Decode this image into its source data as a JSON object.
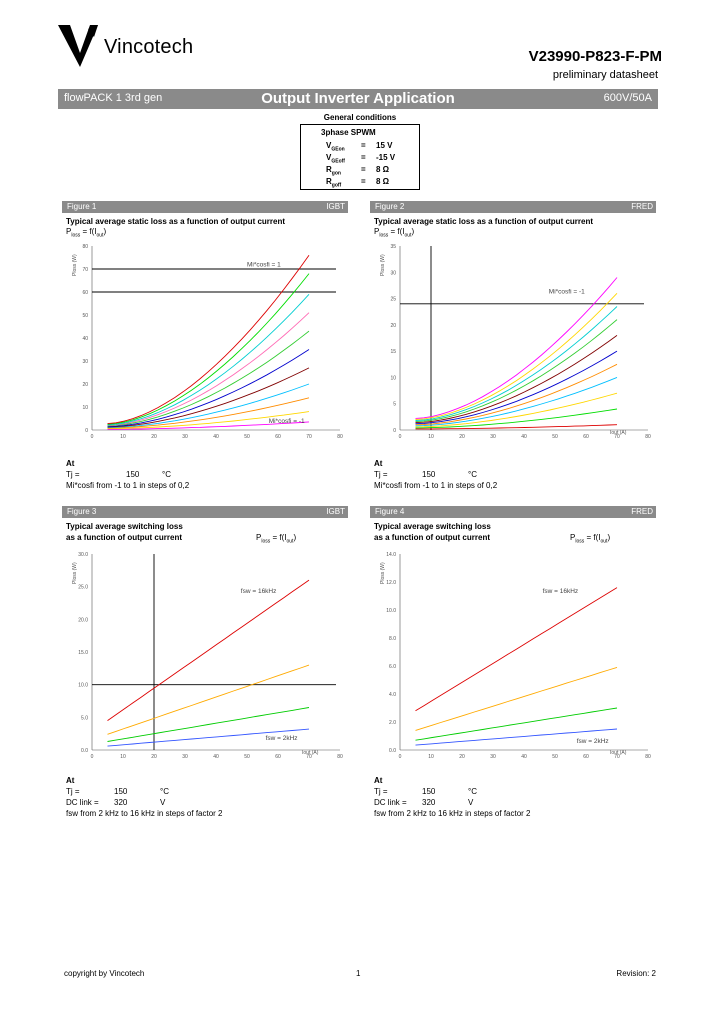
{
  "header": {
    "brand": "Vincotech",
    "part_number": "V23990-P823-F-PM",
    "doc_type": "preliminary datasheet"
  },
  "banner": {
    "left": "flowPACK 1 3rd gen",
    "center": "Output Inverter Application",
    "right": "600V/50A"
  },
  "general_conditions": {
    "title": "General conditions",
    "mode": "3phase SPWM",
    "rows": [
      {
        "sym": "V",
        "sub": "GEon",
        "eq": "=",
        "val": "15 V"
      },
      {
        "sym": "V",
        "sub": "GEoff",
        "eq": "=",
        "val": "-15 V"
      },
      {
        "sym": "R",
        "sub": "gon",
        "eq": "=",
        "val": "8 Ω"
      },
      {
        "sym": "R",
        "sub": "goff",
        "eq": "=",
        "val": "8 Ω"
      }
    ]
  },
  "figures": [
    {
      "name": "Figure 1",
      "device": "IGBT",
      "title1": "Typical average static loss as a function of output current",
      "title2": "",
      "formula": {
        "main": "P",
        "sub": "loss",
        "rest": " = f(I",
        "sub2": "out",
        "end": ")"
      },
      "ylabel": "Ploss (W)",
      "xlabel": "",
      "annot_top": "Mi*cosfi = 1",
      "annot_bottom": "Mi*cosfi = -1",
      "yticks": [
        "0",
        "10",
        "20",
        "30",
        "40",
        "50",
        "60",
        "70",
        "80"
      ],
      "xticks": [
        "0",
        "10",
        "20",
        "30",
        "40",
        "50",
        "60",
        "70",
        "80"
      ],
      "conditions": {
        "at": "At",
        "rows": [
          {
            "label": "Tj =",
            "value": "150",
            "unit": "°C"
          }
        ],
        "note": "Mi*cosfi from -1 to 1 in steps of 0,2"
      }
    },
    {
      "name": "Figure 2",
      "device": "FRED",
      "title1": "Typical average static loss as a function of output current",
      "title2": "",
      "formula": {
        "main": "P",
        "sub": "loss",
        "rest": " = f(I",
        "sub2": "out",
        "end": ")"
      },
      "ylabel": "Ploss (W)",
      "xlabel": "Iout (A)",
      "annot_top": "Mi*cosfi = -1",
      "annot_bottom": "",
      "yticks": [
        "0",
        "5",
        "10",
        "15",
        "20",
        "25",
        "30",
        "35"
      ],
      "xticks": [
        "0",
        "10",
        "20",
        "30",
        "40",
        "50",
        "60",
        "70",
        "80"
      ],
      "conditions": {
        "at": "At",
        "rows": [
          {
            "label": "Tj =",
            "value": "150",
            "unit": "°C"
          }
        ],
        "note": "Mi*cosfi from -1 to 1 in steps of 0,2"
      }
    },
    {
      "name": "Figure 3",
      "device": "IGBT",
      "title1": "Typical average switching loss",
      "title2": "as a function of output current",
      "formula": {
        "main": "P",
        "sub": "loss",
        "rest": " = f(I",
        "sub2": "out",
        "end": ")"
      },
      "ylabel": "Ploss (W)",
      "xlabel": "Iout (A)",
      "annot_top": "fsw = 16kHz",
      "annot_bottom": "fsw = 2kHz",
      "yticks": [
        "0.0",
        "5.0",
        "10.0",
        "15.0",
        "20.0",
        "25.0",
        "30.0"
      ],
      "xticks": [
        "0",
        "10",
        "20",
        "30",
        "40",
        "50",
        "60",
        "70",
        "80"
      ],
      "conditions": {
        "at": "At",
        "rows": [
          {
            "label": "Tj =",
            "value": "150",
            "unit": "°C"
          },
          {
            "label": "DC link =",
            "value": "320",
            "unit": "V"
          }
        ],
        "note": "fsw from 2 kHz to 16 kHz in steps of factor 2"
      }
    },
    {
      "name": "Figure 4",
      "device": "FRED",
      "title1": "Typical average switching loss",
      "title2": "as a function of output current",
      "formula": {
        "main": "P",
        "sub": "loss",
        "rest": " = f(I",
        "sub2": "out",
        "end": ")"
      },
      "ylabel": "Ploss (W)",
      "xlabel": "Iout (A)",
      "annot_top": "fsw = 16kHz",
      "annot_bottom": "fsw = 2kHz",
      "yticks": [
        "0.0",
        "2.0",
        "4.0",
        "6.0",
        "8.0",
        "10.0",
        "12.0",
        "14.0"
      ],
      "xticks": [
        "0",
        "10",
        "20",
        "30",
        "40",
        "50",
        "60",
        "70",
        "80"
      ],
      "conditions": {
        "at": "At",
        "rows": [
          {
            "label": "Tj =",
            "value": "150",
            "unit": "°C"
          },
          {
            "label": "DC link =",
            "value": "320",
            "unit": "V"
          }
        ],
        "note": "fsw from 2 kHz to 16 kHz in steps of factor 2"
      }
    }
  ],
  "chart_data": [
    {
      "type": "line",
      "title": "Typical average static loss as a function of output current",
      "xlabel": "",
      "ylabel": "Ploss (W)",
      "xlim": [
        0,
        80
      ],
      "ylim": [
        0,
        80
      ],
      "grid": false,
      "reference_lines": [
        {
          "axis": "y",
          "value": 70
        },
        {
          "axis": "y",
          "value": 60
        }
      ],
      "series": [
        {
          "color": "#ff00ff",
          "values": [
            [
              5,
              0.3
            ],
            [
              70,
              3.5
            ]
          ]
        },
        {
          "color": "#ffd700",
          "values": [
            [
              5,
              0.6
            ],
            [
              70,
              8
            ]
          ]
        },
        {
          "color": "#ff8c00",
          "values": [
            [
              5,
              0.9
            ],
            [
              70,
              14
            ]
          ]
        },
        {
          "color": "#00bfff",
          "values": [
            [
              5,
              1.1
            ],
            [
              70,
              20
            ]
          ]
        },
        {
          "color": "#800000",
          "values": [
            [
              5,
              1.3
            ],
            [
              70,
              27
            ]
          ]
        },
        {
          "color": "#0000cd",
          "values": [
            [
              5,
              1.5
            ],
            [
              70,
              35
            ]
          ]
        },
        {
          "color": "#32cd32",
          "values": [
            [
              5,
              1.8
            ],
            [
              70,
              43
            ]
          ]
        },
        {
          "color": "#ff69b4",
          "values": [
            [
              5,
              2.0
            ],
            [
              70,
              51
            ]
          ]
        },
        {
          "color": "#00ced1",
          "values": [
            [
              5,
              2.2
            ],
            [
              70,
              59
            ]
          ]
        },
        {
          "color": "#00dd00",
          "values": [
            [
              5,
              2.5
            ],
            [
              70,
              68
            ]
          ]
        },
        {
          "color": "#dd0000",
          "values": [
            [
              5,
              2.8
            ],
            [
              70,
              76
            ]
          ]
        }
      ]
    },
    {
      "type": "line",
      "title": "Typical average static loss as a function of output current",
      "xlabel": "Iout (A)",
      "ylabel": "Ploss (W)",
      "xlim": [
        0,
        80
      ],
      "ylim": [
        0,
        35
      ],
      "grid": false,
      "reference_lines": [
        {
          "axis": "y",
          "value": 24
        },
        {
          "axis": "x",
          "value": 10
        }
      ],
      "series": [
        {
          "color": "#dd0000",
          "values": [
            [
              5,
              0.2
            ],
            [
              70,
              1.0
            ]
          ]
        },
        {
          "color": "#00dd00",
          "values": [
            [
              5,
              0.4
            ],
            [
              70,
              4
            ]
          ]
        },
        {
          "color": "#ffd700",
          "values": [
            [
              5,
              0.6
            ],
            [
              70,
              7
            ]
          ]
        },
        {
          "color": "#00bfff",
          "values": [
            [
              5,
              0.8
            ],
            [
              70,
              10
            ]
          ]
        },
        {
          "color": "#ff8c00",
          "values": [
            [
              5,
              1.0
            ],
            [
              70,
              12.5
            ]
          ]
        },
        {
          "color": "#0000cd",
          "values": [
            [
              5,
              1.2
            ],
            [
              70,
              15
            ]
          ]
        },
        {
          "color": "#800000",
          "values": [
            [
              5,
              1.4
            ],
            [
              70,
              18
            ]
          ]
        },
        {
          "color": "#32cd32",
          "values": [
            [
              5,
              1.6
            ],
            [
              70,
              21
            ]
          ]
        },
        {
          "color": "#00ced1",
          "values": [
            [
              5,
              1.8
            ],
            [
              70,
              23.5
            ]
          ]
        },
        {
          "color": "#ffd700",
          "values": [
            [
              5,
              2.0
            ],
            [
              70,
              26
            ]
          ]
        },
        {
          "color": "#ff00ff",
          "values": [
            [
              5,
              2.2
            ],
            [
              70,
              29
            ]
          ]
        }
      ]
    },
    {
      "type": "line",
      "title": "Typical average switching loss as a function of output current",
      "xlabel": "Iout (A)",
      "ylabel": "Ploss (W)",
      "xlim": [
        0,
        80
      ],
      "ylim": [
        0,
        30
      ],
      "grid": false,
      "reference_lines": [
        {
          "axis": "y",
          "value": 10
        },
        {
          "axis": "x",
          "value": 20
        }
      ],
      "series": [
        {
          "name": "fsw = 16kHz",
          "color": "#dd0000",
          "values": [
            [
              5,
              4.5
            ],
            [
              70,
              26
            ]
          ]
        },
        {
          "color": "#ffaa00",
          "values": [
            [
              5,
              2.4
            ],
            [
              70,
              13
            ]
          ]
        },
        {
          "color": "#00cc00",
          "values": [
            [
              5,
              1.3
            ],
            [
              70,
              6.5
            ]
          ]
        },
        {
          "name": "fsw = 2kHz",
          "color": "#3355ff",
          "values": [
            [
              5,
              0.6
            ],
            [
              70,
              3.2
            ]
          ]
        }
      ]
    },
    {
      "type": "line",
      "title": "Typical average switching loss as a function of output current",
      "xlabel": "Iout (A)",
      "ylabel": "Ploss (W)",
      "xlim": [
        0,
        80
      ],
      "ylim": [
        0,
        14
      ],
      "grid": false,
      "reference_lines": [],
      "series": [
        {
          "name": "fsw = 16kHz",
          "color": "#dd0000",
          "values": [
            [
              5,
              2.8
            ],
            [
              70,
              11.6
            ]
          ]
        },
        {
          "color": "#ffaa00",
          "values": [
            [
              5,
              1.4
            ],
            [
              70,
              5.9
            ]
          ]
        },
        {
          "color": "#00cc00",
          "values": [
            [
              5,
              0.7
            ],
            [
              70,
              3.0
            ]
          ]
        },
        {
          "name": "fsw = 2kHz",
          "color": "#3355ff",
          "values": [
            [
              5,
              0.35
            ],
            [
              70,
              1.5
            ]
          ]
        }
      ]
    }
  ],
  "footer": {
    "copyright": "copyright by Vincotech",
    "page": "1",
    "revision": "Revision: 2"
  }
}
